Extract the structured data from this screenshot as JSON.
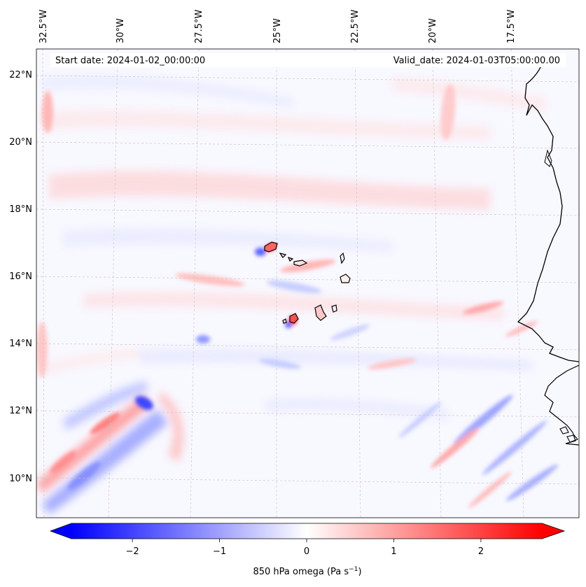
{
  "header": {
    "start_label": "Start date: 2024-01-02_00:00:00",
    "valid_label": "Valid_date: 2024-01-03T05:00:00.00"
  },
  "lon_ticks": [
    "32.5°W",
    "30°W",
    "27.5°W",
    "25°W",
    "22.5°W",
    "20°W",
    "17.5°W"
  ],
  "lat_ticks": [
    "22°N",
    "20°N",
    "18°N",
    "16°N",
    "14°N",
    "12°N",
    "10°N"
  ],
  "colorbar": {
    "label_prefix": "850 hPa omega (Pa s",
    "label_exp": "−1",
    "label_suffix": ")",
    "tick_labels": [
      "−2",
      "−1",
      "0",
      "1",
      "2"
    ],
    "vmin": -2.7,
    "vmax": 2.7,
    "ticks": [
      -2,
      -1,
      0,
      1,
      2
    ],
    "colormap": "bwr",
    "negative_color": "#0000ff",
    "zero_color": "#ffffff",
    "positive_color": "#ff0000"
  }
}
